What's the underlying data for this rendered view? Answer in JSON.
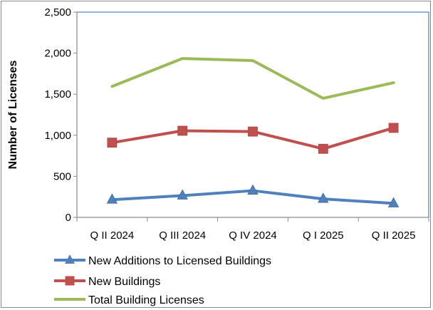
{
  "chart_data": {
    "type": "line",
    "categories": [
      "Q II 2024",
      "Q III 2024",
      "Q IV 2024",
      "Q I 2025",
      "Q II 2025"
    ],
    "series": [
      {
        "name": "New Additions to Licensed Buildings",
        "values": [
          215,
          265,
          325,
          225,
          170
        ],
        "color": "#4F81BD",
        "marker": "triangle"
      },
      {
        "name": "New Buildings",
        "values": [
          910,
          1055,
          1045,
          835,
          1090
        ],
        "color": "#C0504D",
        "marker": "square"
      },
      {
        "name": "Total Building Licenses",
        "values": [
          1595,
          1935,
          1910,
          1450,
          1640
        ],
        "color": "#9BBB59",
        "marker": "none"
      }
    ],
    "ylabel": "Number of Licenses",
    "xlabel": "",
    "ylim": [
      0,
      2500
    ],
    "yticks": [
      0,
      500,
      1000,
      1500,
      2000,
      2500
    ],
    "ytick_labels": [
      "0",
      "500",
      "1,000",
      "1,500",
      "2,000",
      "2,500"
    ],
    "grid": false,
    "legend_position": "bottom"
  }
}
